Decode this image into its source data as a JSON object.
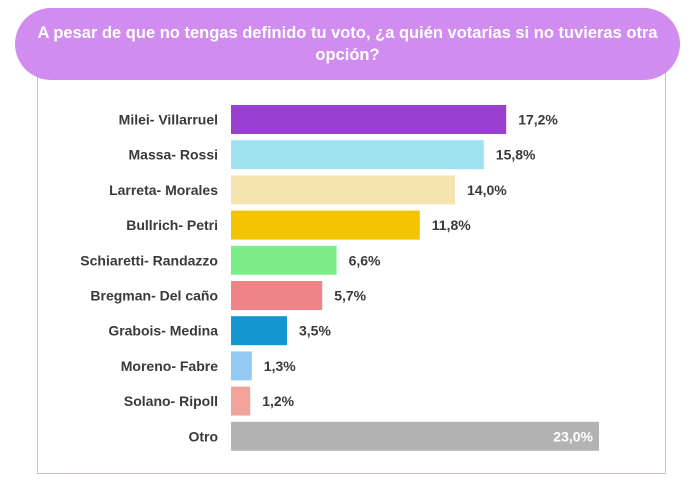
{
  "chart_data": {
    "type": "bar",
    "orientation": "horizontal",
    "title": "A pesar de que no tengas definido tu voto, ¿a quién votarías si no tuvieras otra opción?",
    "categories": [
      "Milei- Villarruel",
      "Massa- Rossi",
      "Larreta- Morales",
      "Bullrich- Petri",
      "Schiaretti- Randazzo",
      "Bregman- Del caño",
      "Grabois- Medina",
      "Moreno- Fabre",
      "Solano- Ripoll",
      "Otro"
    ],
    "values": [
      17.2,
      15.8,
      14.0,
      11.8,
      6.6,
      5.7,
      3.5,
      1.3,
      1.2,
      23.0
    ],
    "value_labels": [
      "17,2%",
      "15,8%",
      "14,0%",
      "11,8%",
      "6,6%",
      "5,7%",
      "3,5%",
      "1,3%",
      "1,2%",
      "23,0%"
    ],
    "colors": [
      "#9b3fd1",
      "#9fe3f0",
      "#f5e4b0",
      "#f5c400",
      "#7ded8a",
      "#ee8388",
      "#1496d0",
      "#93c8f3",
      "#f3a49a",
      "#b3b3b3"
    ],
    "xlim": [
      0,
      23.0
    ],
    "grid": false,
    "legend": "none"
  }
}
